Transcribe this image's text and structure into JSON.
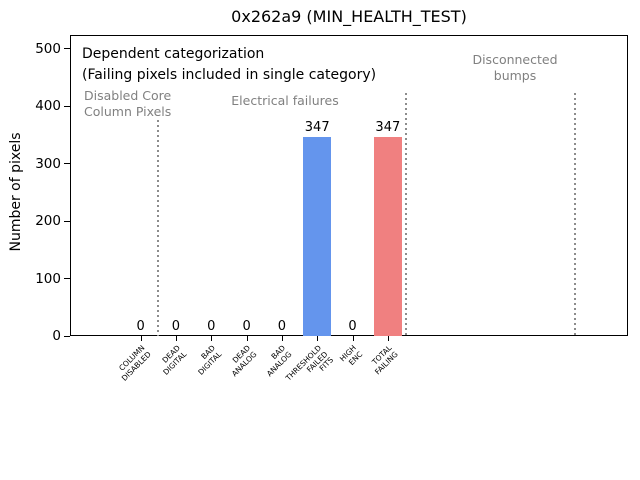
{
  "window": {
    "title": "0x262a9 (MIN_HEALTH_TEST)"
  },
  "chart_data": {
    "type": "bar",
    "title": "0x262a9 (MIN_HEALTH_TEST)",
    "xlabel": "",
    "ylabel": "Number of pixels",
    "categories": [
      "COLUMN\nDISABLED",
      "DEAD\nDIGITAL",
      "BAD\nDIGITAL",
      "DEAD\nANALOG",
      "BAD\nANALOG",
      "THRESHOLD\nFAILED\nFITS",
      "HIGH\nENC",
      "TOTAL\nFAILING"
    ],
    "values": [
      0,
      0,
      0,
      0,
      0,
      347,
      0,
      347
    ],
    "value_labels": [
      "0",
      "0",
      "0",
      "0",
      "0",
      "347",
      "0",
      "347"
    ],
    "bar_colors": [
      "#6495ed",
      "#6495ed",
      "#6495ed",
      "#6495ed",
      "#6495ed",
      "#6495ed",
      "#6495ed",
      "#f08080"
    ],
    "yticks": [
      0,
      100,
      200,
      300,
      400,
      500
    ],
    "ylim": [
      0,
      524
    ],
    "xlim": [
      -2,
      13.8
    ],
    "grid": false,
    "legend": "none",
    "separators": [
      0.5,
      7.5,
      12.3
    ],
    "annotations": [
      {
        "id": "dependent",
        "text": "Dependent categorization",
        "color": "#000000"
      },
      {
        "id": "failing-note",
        "text": "(Failing pixels included in single category)",
        "color": "#000000"
      },
      {
        "id": "disabled-core",
        "text": "Disabled Core\nColumn Pixels",
        "color": "#808080"
      },
      {
        "id": "electrical",
        "text": "Electrical failures",
        "color": "#808080"
      },
      {
        "id": "disconnected",
        "text": "Disconnected\nbumps",
        "color": "#808080"
      }
    ]
  },
  "colors": {
    "background": "#ffffff",
    "axis": "#000000",
    "bar_blue": "#6495ed",
    "bar_red": "#f08080",
    "annotation_gray": "#808080",
    "separator_gray": "#8c8c8c"
  }
}
